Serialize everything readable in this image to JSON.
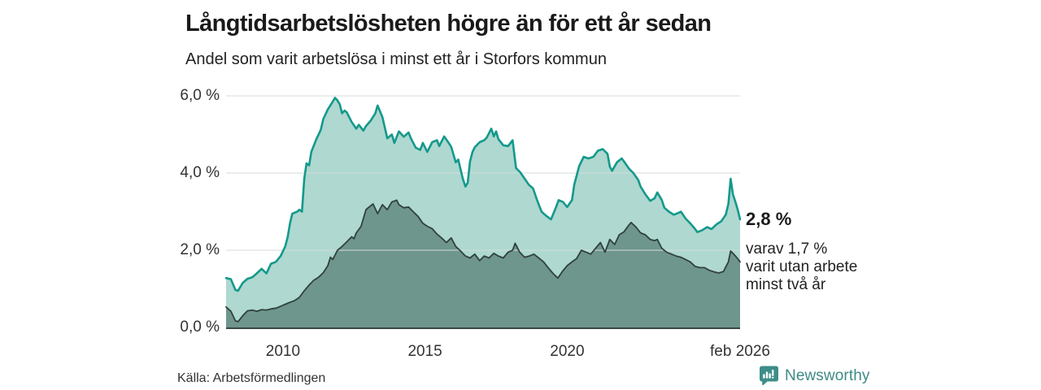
{
  "header": {
    "title": "Långtidsarbetslösheten högre än för ett år sedan",
    "subtitle": "Andel som varit arbetslösa i minst ett år i Storfors kommun"
  },
  "chart_data": {
    "type": "area",
    "title": "Långtidsarbetslösheten högre än för ett år sedan",
    "subtitle": "Andel som varit arbetslösa i minst ett år i Storfors kommun",
    "x_unit": "year (decimal, monthly data)",
    "x_range": [
      2008.0,
      2026.083
    ],
    "ylim": [
      0,
      6
    ],
    "grid": true,
    "grid_color": "#d8dcdb",
    "axis_color": "#3b4744",
    "y_ticks": [
      {
        "value": 0,
        "label": "0,0 %"
      },
      {
        "value": 2,
        "label": "2,0 %"
      },
      {
        "value": 4,
        "label": "4,0 %"
      },
      {
        "value": 6,
        "label": "6,0 %"
      }
    ],
    "x_ticks": [
      {
        "year": 2010,
        "label": "2010"
      },
      {
        "year": 2015,
        "label": "2015"
      },
      {
        "year": 2020,
        "label": "2020"
      },
      {
        "year": 2026.083,
        "label": "feb 2026"
      }
    ],
    "annotations": {
      "primary": "2,8 %",
      "secondary": "varav 1,7 %\nvarit utan arbete\nminst två år"
    },
    "series": [
      {
        "name": "Arbetslösa minst ett år",
        "end_value_pct": 2.8,
        "fill": "#aed8d0",
        "line": "#14998b",
        "points": [
          [
            2008.0,
            1.28
          ],
          [
            2008.17,
            1.25
          ],
          [
            2008.33,
            0.97
          ],
          [
            2008.42,
            0.95
          ],
          [
            2008.58,
            1.15
          ],
          [
            2008.75,
            1.26
          ],
          [
            2008.92,
            1.3
          ],
          [
            2009.08,
            1.4
          ],
          [
            2009.25,
            1.52
          ],
          [
            2009.42,
            1.4
          ],
          [
            2009.58,
            1.65
          ],
          [
            2009.75,
            1.7
          ],
          [
            2009.92,
            1.85
          ],
          [
            2010.08,
            2.1
          ],
          [
            2010.17,
            2.35
          ],
          [
            2010.25,
            2.7
          ],
          [
            2010.33,
            2.95
          ],
          [
            2010.5,
            3.0
          ],
          [
            2010.58,
            3.05
          ],
          [
            2010.67,
            3.0
          ],
          [
            2010.75,
            3.85
          ],
          [
            2010.83,
            4.25
          ],
          [
            2010.92,
            4.2
          ],
          [
            2011.0,
            4.55
          ],
          [
            2011.08,
            4.7
          ],
          [
            2011.17,
            4.87
          ],
          [
            2011.33,
            5.12
          ],
          [
            2011.42,
            5.4
          ],
          [
            2011.58,
            5.65
          ],
          [
            2011.75,
            5.85
          ],
          [
            2011.83,
            5.95
          ],
          [
            2011.92,
            5.88
          ],
          [
            2012.0,
            5.78
          ],
          [
            2012.08,
            5.55
          ],
          [
            2012.17,
            5.62
          ],
          [
            2012.25,
            5.57
          ],
          [
            2012.42,
            5.32
          ],
          [
            2012.58,
            5.15
          ],
          [
            2012.67,
            5.25
          ],
          [
            2012.83,
            5.1
          ],
          [
            2012.92,
            5.22
          ],
          [
            2013.08,
            5.35
          ],
          [
            2013.25,
            5.55
          ],
          [
            2013.33,
            5.75
          ],
          [
            2013.5,
            5.45
          ],
          [
            2013.67,
            4.9
          ],
          [
            2013.83,
            5.0
          ],
          [
            2013.92,
            4.78
          ],
          [
            2014.08,
            5.08
          ],
          [
            2014.25,
            4.94
          ],
          [
            2014.42,
            5.05
          ],
          [
            2014.5,
            4.9
          ],
          [
            2014.67,
            4.66
          ],
          [
            2014.83,
            4.6
          ],
          [
            2014.92,
            4.78
          ],
          [
            2015.08,
            4.55
          ],
          [
            2015.25,
            4.8
          ],
          [
            2015.42,
            4.85
          ],
          [
            2015.5,
            4.7
          ],
          [
            2015.67,
            4.95
          ],
          [
            2015.83,
            4.78
          ],
          [
            2015.92,
            4.68
          ],
          [
            2016.08,
            4.28
          ],
          [
            2016.17,
            4.35
          ],
          [
            2016.25,
            4.1
          ],
          [
            2016.33,
            3.85
          ],
          [
            2016.42,
            3.65
          ],
          [
            2016.5,
            3.75
          ],
          [
            2016.58,
            4.3
          ],
          [
            2016.67,
            4.55
          ],
          [
            2016.75,
            4.67
          ],
          [
            2016.92,
            4.8
          ],
          [
            2017.08,
            4.85
          ],
          [
            2017.17,
            4.92
          ],
          [
            2017.33,
            5.15
          ],
          [
            2017.42,
            4.95
          ],
          [
            2017.5,
            5.08
          ],
          [
            2017.58,
            4.88
          ],
          [
            2017.75,
            4.72
          ],
          [
            2017.92,
            4.7
          ],
          [
            2018.08,
            4.85
          ],
          [
            2018.2,
            4.13
          ],
          [
            2018.35,
            4.02
          ],
          [
            2018.5,
            3.86
          ],
          [
            2018.65,
            3.7
          ],
          [
            2018.8,
            3.6
          ],
          [
            2018.94,
            3.3
          ],
          [
            2019.1,
            3.0
          ],
          [
            2019.25,
            2.9
          ],
          [
            2019.43,
            2.8
          ],
          [
            2019.6,
            3.1
          ],
          [
            2019.7,
            3.3
          ],
          [
            2019.85,
            3.25
          ],
          [
            2020.0,
            3.12
          ],
          [
            2020.17,
            3.3
          ],
          [
            2020.25,
            3.7
          ],
          [
            2020.42,
            4.18
          ],
          [
            2020.58,
            4.42
          ],
          [
            2020.75,
            4.38
          ],
          [
            2020.92,
            4.42
          ],
          [
            2021.08,
            4.58
          ],
          [
            2021.25,
            4.62
          ],
          [
            2021.42,
            4.5
          ],
          [
            2021.5,
            4.17
          ],
          [
            2021.58,
            4.06
          ],
          [
            2021.75,
            4.28
          ],
          [
            2021.92,
            4.38
          ],
          [
            2022.0,
            4.3
          ],
          [
            2022.17,
            4.12
          ],
          [
            2022.33,
            4.0
          ],
          [
            2022.5,
            3.82
          ],
          [
            2022.58,
            3.65
          ],
          [
            2022.75,
            3.45
          ],
          [
            2022.92,
            3.28
          ],
          [
            2023.08,
            3.35
          ],
          [
            2023.17,
            3.5
          ],
          [
            2023.33,
            3.3
          ],
          [
            2023.42,
            3.1
          ],
          [
            2023.58,
            3.0
          ],
          [
            2023.75,
            2.92
          ],
          [
            2023.92,
            2.97
          ],
          [
            2024.0,
            3.0
          ],
          [
            2024.17,
            2.82
          ],
          [
            2024.33,
            2.7
          ],
          [
            2024.5,
            2.55
          ],
          [
            2024.58,
            2.47
          ],
          [
            2024.75,
            2.52
          ],
          [
            2024.92,
            2.6
          ],
          [
            2025.08,
            2.55
          ],
          [
            2025.25,
            2.67
          ],
          [
            2025.42,
            2.75
          ],
          [
            2025.58,
            2.92
          ],
          [
            2025.67,
            3.2
          ],
          [
            2025.75,
            3.85
          ],
          [
            2025.83,
            3.45
          ],
          [
            2025.92,
            3.25
          ],
          [
            2026.0,
            3.05
          ],
          [
            2026.083,
            2.8
          ]
        ]
      },
      {
        "name": "varav arbetslösa minst två år",
        "end_value_pct": 1.7,
        "fill": "#6e968d",
        "line": "#30413d",
        "points": [
          [
            2008.0,
            0.53
          ],
          [
            2008.17,
            0.42
          ],
          [
            2008.33,
            0.17
          ],
          [
            2008.42,
            0.15
          ],
          [
            2008.58,
            0.3
          ],
          [
            2008.75,
            0.43
          ],
          [
            2008.92,
            0.45
          ],
          [
            2009.08,
            0.42
          ],
          [
            2009.25,
            0.46
          ],
          [
            2009.42,
            0.45
          ],
          [
            2009.58,
            0.48
          ],
          [
            2009.75,
            0.5
          ],
          [
            2009.92,
            0.55
          ],
          [
            2010.08,
            0.6
          ],
          [
            2010.25,
            0.65
          ],
          [
            2010.42,
            0.7
          ],
          [
            2010.58,
            0.78
          ],
          [
            2010.75,
            0.95
          ],
          [
            2010.92,
            1.1
          ],
          [
            2011.08,
            1.22
          ],
          [
            2011.25,
            1.3
          ],
          [
            2011.42,
            1.42
          ],
          [
            2011.58,
            1.6
          ],
          [
            2011.67,
            1.82
          ],
          [
            2011.75,
            1.76
          ],
          [
            2011.92,
            2.0
          ],
          [
            2012.08,
            2.1
          ],
          [
            2012.25,
            2.22
          ],
          [
            2012.42,
            2.35
          ],
          [
            2012.5,
            2.3
          ],
          [
            2012.58,
            2.45
          ],
          [
            2012.75,
            2.62
          ],
          [
            2012.92,
            3.05
          ],
          [
            2013.0,
            3.1
          ],
          [
            2013.17,
            3.2
          ],
          [
            2013.33,
            2.95
          ],
          [
            2013.5,
            3.18
          ],
          [
            2013.67,
            3.05
          ],
          [
            2013.83,
            3.25
          ],
          [
            2014.0,
            3.3
          ],
          [
            2014.08,
            3.18
          ],
          [
            2014.25,
            3.1
          ],
          [
            2014.42,
            3.12
          ],
          [
            2014.58,
            3.0
          ],
          [
            2014.75,
            2.88
          ],
          [
            2014.92,
            2.7
          ],
          [
            2015.08,
            2.62
          ],
          [
            2015.25,
            2.56
          ],
          [
            2015.42,
            2.42
          ],
          [
            2015.58,
            2.32
          ],
          [
            2015.75,
            2.2
          ],
          [
            2015.92,
            2.32
          ],
          [
            2016.08,
            2.1
          ],
          [
            2016.25,
            1.98
          ],
          [
            2016.42,
            1.85
          ],
          [
            2016.58,
            1.8
          ],
          [
            2016.75,
            1.9
          ],
          [
            2016.92,
            1.73
          ],
          [
            2017.08,
            1.85
          ],
          [
            2017.25,
            1.8
          ],
          [
            2017.42,
            1.92
          ],
          [
            2017.58,
            1.85
          ],
          [
            2017.75,
            1.8
          ],
          [
            2017.92,
            1.95
          ],
          [
            2018.08,
            2.0
          ],
          [
            2018.17,
            2.18
          ],
          [
            2018.33,
            1.95
          ],
          [
            2018.5,
            1.82
          ],
          [
            2018.67,
            1.85
          ],
          [
            2018.83,
            1.9
          ],
          [
            2019.0,
            1.8
          ],
          [
            2019.17,
            1.7
          ],
          [
            2019.33,
            1.55
          ],
          [
            2019.5,
            1.4
          ],
          [
            2019.67,
            1.28
          ],
          [
            2019.83,
            1.45
          ],
          [
            2020.0,
            1.6
          ],
          [
            2020.17,
            1.7
          ],
          [
            2020.33,
            1.78
          ],
          [
            2020.5,
            2.0
          ],
          [
            2020.67,
            1.95
          ],
          [
            2020.83,
            1.9
          ],
          [
            2021.0,
            2.05
          ],
          [
            2021.17,
            2.2
          ],
          [
            2021.33,
            1.95
          ],
          [
            2021.5,
            2.28
          ],
          [
            2021.67,
            2.15
          ],
          [
            2021.83,
            2.4
          ],
          [
            2022.0,
            2.48
          ],
          [
            2022.17,
            2.65
          ],
          [
            2022.25,
            2.72
          ],
          [
            2022.42,
            2.6
          ],
          [
            2022.58,
            2.45
          ],
          [
            2022.75,
            2.4
          ],
          [
            2022.92,
            2.28
          ],
          [
            2023.08,
            2.25
          ],
          [
            2023.17,
            2.28
          ],
          [
            2023.33,
            2.05
          ],
          [
            2023.5,
            1.95
          ],
          [
            2023.67,
            1.9
          ],
          [
            2023.83,
            1.85
          ],
          [
            2024.0,
            1.82
          ],
          [
            2024.17,
            1.76
          ],
          [
            2024.33,
            1.7
          ],
          [
            2024.5,
            1.58
          ],
          [
            2024.67,
            1.55
          ],
          [
            2024.83,
            1.55
          ],
          [
            2025.0,
            1.48
          ],
          [
            2025.17,
            1.44
          ],
          [
            2025.33,
            1.41
          ],
          [
            2025.5,
            1.45
          ],
          [
            2025.67,
            1.7
          ],
          [
            2025.75,
            1.98
          ],
          [
            2025.83,
            1.92
          ],
          [
            2025.92,
            1.85
          ],
          [
            2026.0,
            1.78
          ],
          [
            2026.083,
            1.7
          ]
        ]
      }
    ],
    "legend_position": "none"
  },
  "footer": {
    "source": "Källa: Arbetsförmedlingen",
    "brand": "Newsworthy"
  }
}
